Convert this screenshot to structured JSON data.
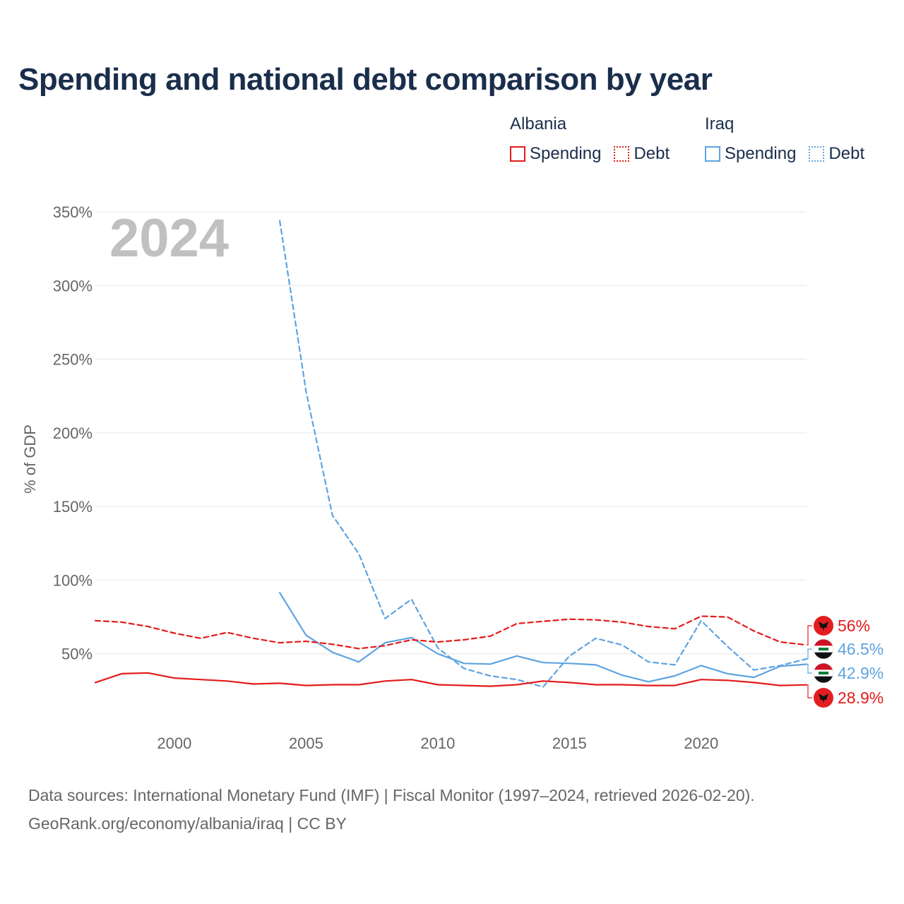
{
  "title": "Spending and national debt comparison by year",
  "legend": {
    "groups": [
      {
        "name": "Albania",
        "color": "#e31b1b",
        "spending_label": "Spending",
        "debt_label": "Debt"
      },
      {
        "name": "Iraq",
        "color": "#5fa3e0",
        "spending_label": "Spending",
        "debt_label": "Debt"
      }
    ]
  },
  "footer": {
    "line1": "Data sources: International Monetary Fund (IMF) | Fiscal Monitor (1997–2024, retrieved 2026-02-20).",
    "line2": "GeoRank.org/economy/albania/iraq | CC BY"
  },
  "chart_data": {
    "type": "line",
    "ylabel": "% of GDP",
    "year_label": "2024",
    "xlim": [
      1997,
      2024
    ],
    "ylim": [
      0,
      350
    ],
    "x_ticks": [
      2000,
      2005,
      2010,
      2015,
      2020
    ],
    "y_ticks": [
      50,
      100,
      150,
      200,
      250,
      300,
      350
    ],
    "y_tick_labels": [
      "50%",
      "100%",
      "150%",
      "200%",
      "250%",
      "300%",
      "350%"
    ],
    "grid": true,
    "series": [
      {
        "name": "Albania Debt",
        "country": "Albania",
        "color": "#e31b1b",
        "dash": true,
        "start_year": 1997,
        "values": [
          72.5,
          71.5,
          68.5,
          64,
          60.5,
          64.5,
          60.5,
          57.5,
          58.5,
          56.5,
          53.5,
          55.5,
          59.5,
          58,
          59.5,
          62,
          70.5,
          72,
          73.5,
          73,
          71.5,
          68.5,
          67,
          75.5,
          75,
          65.5,
          58,
          56
        ],
        "end_label": "56%"
      },
      {
        "name": "Albania Spending",
        "country": "Albania",
        "color": "#e31b1b",
        "dash": false,
        "start_year": 1997,
        "values": [
          30.5,
          36.5,
          37,
          33.5,
          32.5,
          31.5,
          29.5,
          30,
          28.5,
          29,
          29,
          31.5,
          32.5,
          29,
          28.5,
          28,
          29,
          31.5,
          30.5,
          29,
          29,
          28.5,
          28.5,
          32.5,
          32,
          30.5,
          28.5,
          28.9
        ],
        "end_label": "28.9%"
      },
      {
        "name": "Iraq Debt",
        "country": "Iraq",
        "color": "#5fa3e0",
        "dash": true,
        "start_year": 2004,
        "values": [
          344,
          228,
          144,
          118,
          74,
          87,
          54,
          40,
          35,
          32.5,
          27.5,
          48.5,
          60.5,
          56,
          44.5,
          42.5,
          72.5,
          55,
          39,
          42,
          46.5
        ],
        "end_label": "46.5%"
      },
      {
        "name": "Iraq Spending",
        "country": "Iraq",
        "color": "#5fa3e0",
        "dash": false,
        "start_year": 2004,
        "values": [
          91.5,
          62.5,
          51,
          44.5,
          57.5,
          61,
          50,
          43.5,
          43,
          48.5,
          44,
          43.5,
          42.5,
          35.5,
          31,
          35,
          42,
          36.5,
          34,
          41.5,
          42.9
        ],
        "end_label": "42.9%"
      }
    ]
  }
}
